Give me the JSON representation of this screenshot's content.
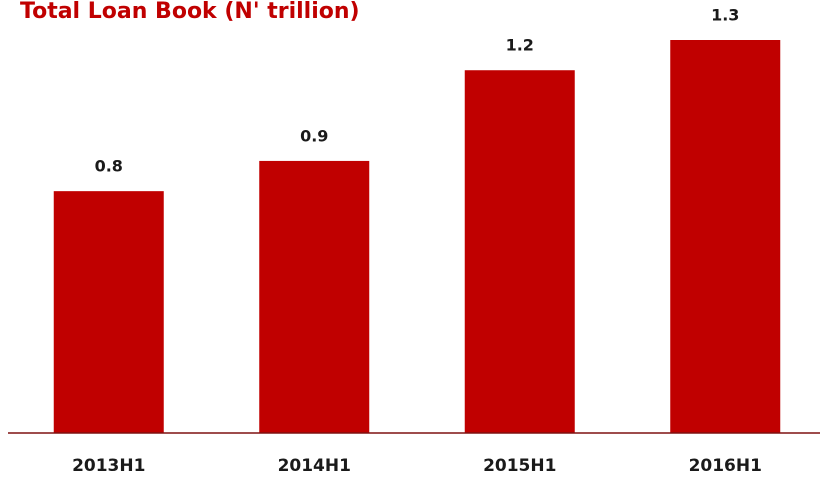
{
  "chart_data": {
    "type": "bar",
    "title": "Total Loan Book (N' trillion)",
    "categories": [
      "2013H1",
      "2014H1",
      "2015H1",
      "2016H1"
    ],
    "values": [
      0.8,
      0.9,
      1.2,
      1.3
    ],
    "color": "#c00000"
  }
}
